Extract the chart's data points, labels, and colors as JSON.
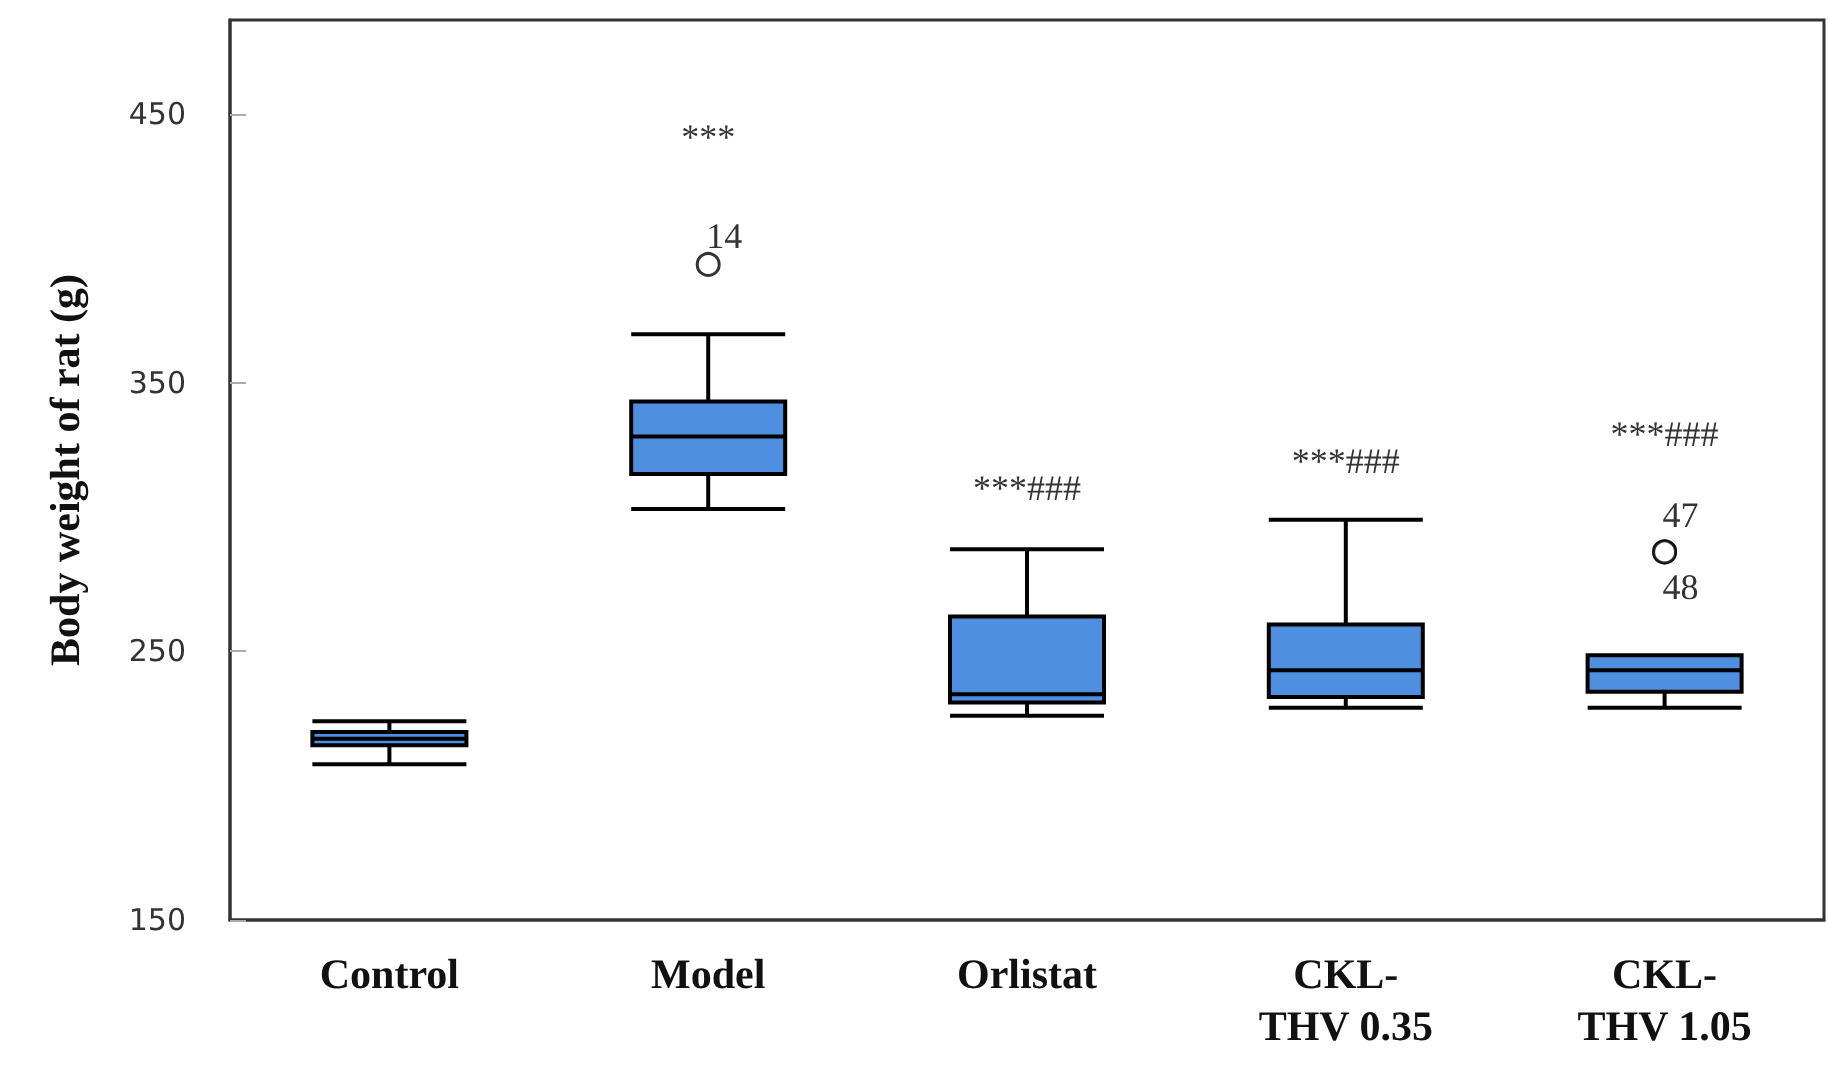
{
  "chart_data": {
    "type": "box",
    "ylabel": "Body weight of rat (g)",
    "categories": [
      "Control",
      "Model",
      "Orlistat",
      "CKL-THV 0.35",
      "CKL-THV 1.05"
    ],
    "color": "#4f8fdf",
    "boxes": [
      {
        "low": 208,
        "q1": 215,
        "median": 217.5,
        "q3": 220,
        "high": 224
      },
      {
        "low": 303,
        "q1": 316,
        "median": 330,
        "q3": 343,
        "high": 368,
        "outliers": [
          394
        ]
      },
      {
        "low": 226,
        "q1": 231,
        "median": 234,
        "q3": 263,
        "high": 288
      },
      {
        "low": 229,
        "q1": 233,
        "median": 243,
        "q3": 260,
        "high": 299
      },
      {
        "low": 229,
        "q1": 235,
        "median": 243,
        "q3": 248.5,
        "high": 248.5,
        "outliers": [
          287,
          287
        ]
      }
    ],
    "ylim": [
      150,
      485
    ],
    "yticks": [
      150,
      250,
      350,
      450
    ],
    "annotations": [
      "***",
      "14",
      "***###",
      "***###",
      "***###",
      "47",
      "48"
    ]
  }
}
